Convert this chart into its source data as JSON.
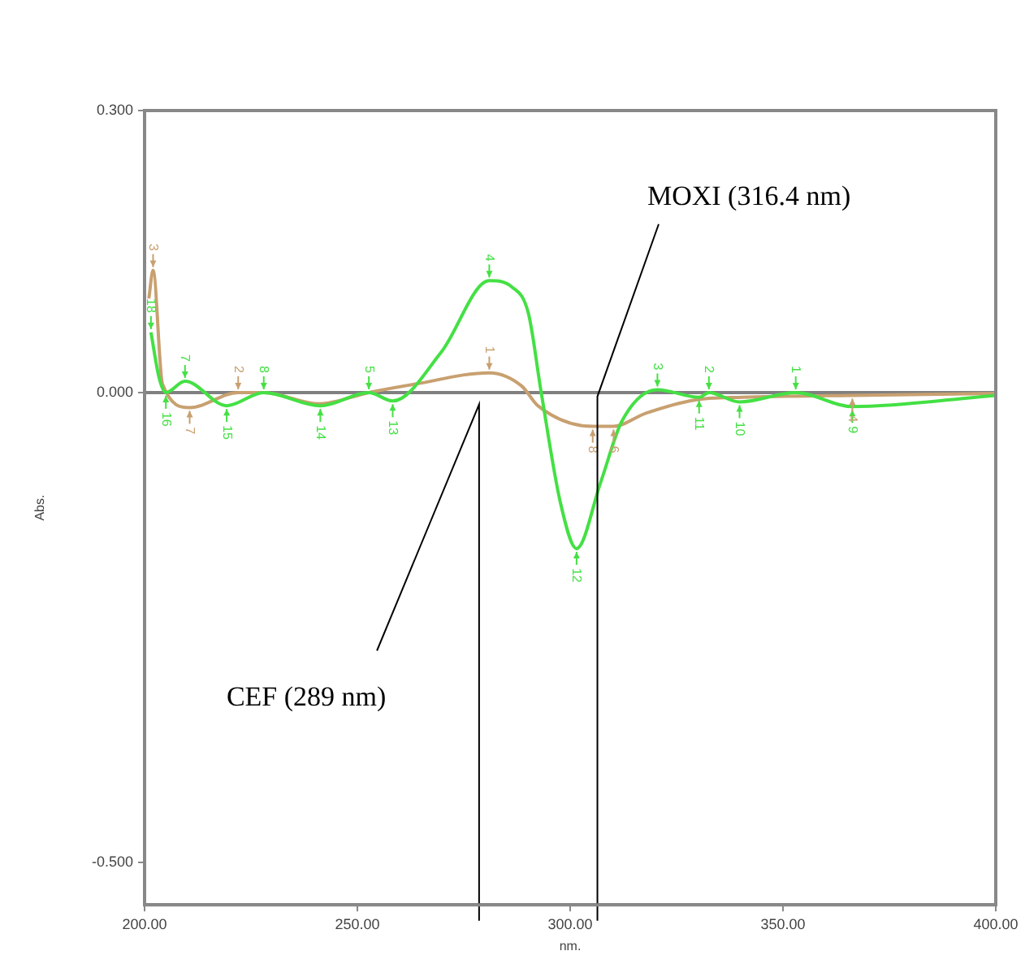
{
  "chart_data": {
    "type": "line",
    "xlabel": "nm.",
    "ylabel": "Abs.",
    "xlim": [
      200,
      400
    ],
    "xticks": [
      {
        "value": 200,
        "label": "200.00"
      },
      {
        "value": 250,
        "label": "250.00"
      },
      {
        "value": 300,
        "label": "300.00"
      },
      {
        "value": 350,
        "label": "350.00"
      },
      {
        "value": 400,
        "label": "400.00"
      }
    ],
    "ylim": [
      -0.545,
      0.3
    ],
    "yticks": [
      {
        "value": 0.3,
        "label": "0.300"
      },
      {
        "value": 0,
        "label": "0.000"
      },
      {
        "value": -0.5,
        "label": "-0.500"
      }
    ],
    "grid": false,
    "legend": false,
    "marker": "none",
    "line_style": "solid",
    "ref_lines": [
      {
        "axis": "y",
        "value": 0,
        "color": "#808080"
      }
    ],
    "annotations": [
      "CEF (289 nm)",
      "MOXI (316.4 nm)",
      {
        "text": "18",
        "x": 201.5,
        "y": 0.064
      },
      {
        "text": "16",
        "x": 205,
        "y": 0
      },
      {
        "text": "7",
        "x": 209.5,
        "y": 0.012
      },
      {
        "text": "15",
        "x": 219.3,
        "y": -0.014
      },
      {
        "text": "8",
        "x": 228,
        "y": 0
      },
      {
        "text": "14",
        "x": 241.3,
        "y": -0.014
      },
      {
        "text": "5",
        "x": 252.7,
        "y": 0
      },
      {
        "text": "13",
        "x": 258.3,
        "y": -0.009
      },
      {
        "text": "4",
        "x": 281,
        "y": 0.119
      },
      {
        "text": "12",
        "x": 301.5,
        "y": -0.166
      },
      {
        "text": "3",
        "x": 320.5,
        "y": 0.003
      },
      {
        "text": "11",
        "x": 330.3,
        "y": -0.005
      },
      {
        "text": "2",
        "x": 332.6,
        "y": 0
      },
      {
        "text": "10",
        "x": 339.8,
        "y": -0.01
      },
      {
        "text": "1",
        "x": 353,
        "y": 0
      },
      {
        "text": "9",
        "x": 366.3,
        "y": -0.015
      },
      {
        "text": "3",
        "x": 202,
        "y": 0.13
      },
      {
        "text": "7",
        "x": 210.6,
        "y": -0.016
      },
      {
        "text": "2",
        "x": 222,
        "y": 0
      },
      {
        "text": "1",
        "x": 281,
        "y": 0.021
      },
      {
        "text": "8",
        "x": 305.3,
        "y": -0.036
      },
      {
        "text": "6",
        "x": 310.2,
        "y": -0.036
      },
      {
        "text": "4",
        "x": 366.3,
        "y": -0.003
      }
    ],
    "series": [
      {
        "color": "#44e044",
        "x": [
          201.5,
          203.4,
          205,
          209.5,
          219.3,
          228,
          241.3,
          252.7,
          258.3,
          269.7,
          281,
          286.4,
          290.2,
          293.2,
          297.7,
          301.5,
          307.2,
          312.1,
          320.5,
          330.3,
          332.6,
          339.8,
          353,
          366.3,
          400
        ],
        "values": [
          0.064,
          0.016,
          0,
          0.012,
          -0.014,
          0,
          -0.014,
          0,
          -0.009,
          0.043,
          0.119,
          0.112,
          0.084,
          0,
          -0.117,
          -0.166,
          -0.095,
          -0.031,
          0.003,
          -0.005,
          0,
          -0.01,
          0,
          -0.015,
          -0.003
        ]
      },
      {
        "color": "#c8a070",
        "x": [
          201,
          202,
          204.2,
          210.6,
          222,
          228,
          241,
          252.7,
          263.6,
          281,
          288.6,
          292.4,
          305.3,
          310.2,
          317.8,
          329.2,
          340.5,
          366.3,
          400
        ],
        "values": [
          0.1,
          0.13,
          0.009,
          -0.016,
          0,
          0,
          -0.012,
          0,
          0.009,
          0.021,
          0.007,
          -0.014,
          -0.036,
          -0.036,
          -0.022,
          -0.008,
          -0.005,
          -0.003,
          -0.001
        ]
      }
    ]
  }
}
